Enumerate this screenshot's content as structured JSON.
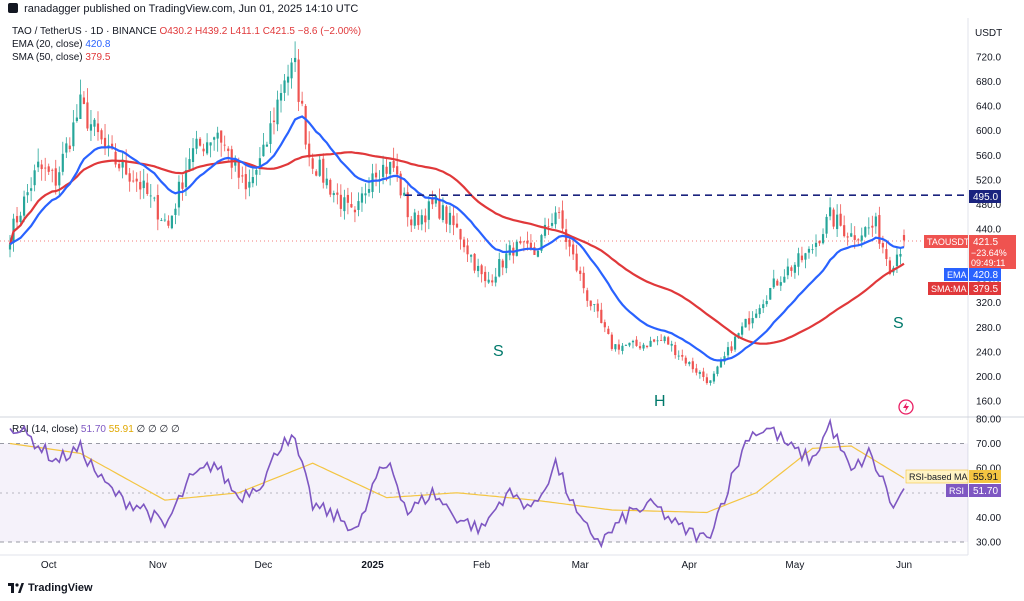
{
  "header": {
    "publisher": "ranadagger published on TradingView.com, Jun 01, 2025 14:10 UTC"
  },
  "legend": {
    "symbol": "TAO / TetherUS · 1D · BINANCE",
    "open": "O430.2",
    "high": "H439.2",
    "low": "L411.1",
    "close": "C421.5",
    "change": "−8.6 (−2.00%)",
    "ema_label": "EMA (20, close)",
    "ema_value": "420.8",
    "sma_label": "SMA (50, close)",
    "sma_value": "379.5",
    "rsi_label": "RSI (14, close)",
    "rsi_value": "51.70",
    "rsi_ma_value": "55.91",
    "rsi_extra": "∅ ∅ ∅ ∅"
  },
  "badges": {
    "usdt": "USDT",
    "level": "495.0",
    "ticker": "TAOUSDT",
    "price": "421.5",
    "pct": "−23.64%",
    "timer": "09:49:11",
    "ema": "EMA",
    "ema_val": "420.8",
    "sma": "SMA:MA",
    "sma_val": "379.5",
    "rsi_ma": "RSI-based MA",
    "rsi_ma_val": "55.91",
    "rsi": "RSI",
    "rsi_val": "51.70"
  },
  "annotations": {
    "s_left": "S",
    "h": "H",
    "s_right": "S"
  },
  "footer": {
    "brand": "TradingView"
  },
  "colors": {
    "up": "#26a69a",
    "down": "#ef5350",
    "ema": "#2962ff",
    "sma": "#e0383a",
    "rsi": "#7e57c2",
    "rsi_ma": "#f4c542",
    "level": "#1a237e"
  },
  "chart_data": [
    {
      "type": "candlestick",
      "symbol": "TAO / TetherUS",
      "timeframe": "1D",
      "exchange": "BINANCE",
      "y_scale": "linear",
      "ylim": [
        140,
        760
      ],
      "yticks": [
        160,
        200,
        240,
        280,
        320,
        360,
        400,
        440,
        480,
        520,
        560,
        600,
        640,
        680,
        720
      ],
      "xticks": [
        "Oct",
        "Nov",
        "Dec",
        "2025",
        "Feb",
        "Mar",
        "Apr",
        "May",
        "Jun"
      ],
      "date_range": [
        "2024-09-20",
        "2025-06-01"
      ],
      "anchors": [
        {
          "date": "2024-09-20",
          "close": 430
        },
        {
          "date": "2024-09-28",
          "close": 540
        },
        {
          "date": "2024-10-03",
          "close": 520
        },
        {
          "date": "2024-10-10",
          "close": 640
        },
        {
          "date": "2024-10-18",
          "close": 560
        },
        {
          "date": "2024-10-26",
          "close": 520
        },
        {
          "date": "2024-11-04",
          "close": 445
        },
        {
          "date": "2024-11-10",
          "close": 560
        },
        {
          "date": "2024-11-18",
          "close": 600
        },
        {
          "date": "2024-11-26",
          "close": 500
        },
        {
          "date": "2024-12-01",
          "close": 560
        },
        {
          "date": "2024-12-07",
          "close": 690
        },
        {
          "date": "2024-12-10",
          "close": 700
        },
        {
          "date": "2024-12-14",
          "close": 560
        },
        {
          "date": "2024-12-21",
          "close": 500
        },
        {
          "date": "2024-12-27",
          "close": 455
        },
        {
          "date": "2025-01-01",
          "close": 540
        },
        {
          "date": "2025-01-07",
          "close": 540
        },
        {
          "date": "2025-01-12",
          "close": 450
        },
        {
          "date": "2025-01-19",
          "close": 480
        },
        {
          "date": "2025-01-26",
          "close": 430
        },
        {
          "date": "2025-02-02",
          "close": 350
        },
        {
          "date": "2025-02-10",
          "close": 410
        },
        {
          "date": "2025-02-16",
          "close": 400
        },
        {
          "date": "2025-02-22",
          "close": 470
        },
        {
          "date": "2025-03-03",
          "close": 330
        },
        {
          "date": "2025-03-10",
          "close": 250
        },
        {
          "date": "2025-03-17",
          "close": 250
        },
        {
          "date": "2025-03-25",
          "close": 260
        },
        {
          "date": "2025-04-01",
          "close": 220
        },
        {
          "date": "2025-04-07",
          "close": 190
        },
        {
          "date": "2025-04-14",
          "close": 260
        },
        {
          "date": "2025-04-21",
          "close": 320
        },
        {
          "date": "2025-04-28",
          "close": 370
        },
        {
          "date": "2025-05-05",
          "close": 400
        },
        {
          "date": "2025-05-11",
          "close": 460
        },
        {
          "date": "2025-05-17",
          "close": 430
        },
        {
          "date": "2025-05-24",
          "close": 445
        },
        {
          "date": "2025-05-28",
          "close": 380
        },
        {
          "date": "2025-06-01",
          "close": 421.5
        }
      ],
      "last_candle": {
        "open": 430.2,
        "high": 439.2,
        "low": 411.1,
        "close": 421.5
      },
      "resistance_level": 495.0,
      "ema20_last": 420.8,
      "sma50_last": 379.5,
      "annotations": [
        "S",
        "H",
        "S"
      ]
    },
    {
      "type": "line",
      "name": "RSI (14, close)",
      "ylim": [
        25,
        82
      ],
      "yticks": [
        30,
        40,
        50,
        60,
        70,
        80
      ],
      "band": [
        30,
        70
      ],
      "rsi_last": 51.7,
      "rsi_ma_last": 55.91,
      "anchors": [
        {
          "date": "2024-09-20",
          "rsi": 78
        },
        {
          "date": "2024-09-26",
          "rsi": 72
        },
        {
          "date": "2024-10-03",
          "rsi": 63
        },
        {
          "date": "2024-10-10",
          "rsi": 68
        },
        {
          "date": "2024-10-16",
          "rsi": 55
        },
        {
          "date": "2024-10-22",
          "rsi": 47
        },
        {
          "date": "2024-10-28",
          "rsi": 44
        },
        {
          "date": "2024-11-03",
          "rsi": 36
        },
        {
          "date": "2024-11-10",
          "rsi": 55
        },
        {
          "date": "2024-11-17",
          "rsi": 62
        },
        {
          "date": "2024-11-24",
          "rsi": 48
        },
        {
          "date": "2024-12-01",
          "rsi": 55
        },
        {
          "date": "2024-12-07",
          "rsi": 73
        },
        {
          "date": "2024-12-10",
          "rsi": 70
        },
        {
          "date": "2024-12-15",
          "rsi": 45
        },
        {
          "date": "2024-12-22",
          "rsi": 40
        },
        {
          "date": "2024-12-28",
          "rsi": 35
        },
        {
          "date": "2025-01-02",
          "rsi": 56
        },
        {
          "date": "2025-01-06",
          "rsi": 62
        },
        {
          "date": "2025-01-11",
          "rsi": 42
        },
        {
          "date": "2025-01-18",
          "rsi": 50
        },
        {
          "date": "2025-01-25",
          "rsi": 40
        },
        {
          "date": "2025-02-01",
          "rsi": 35
        },
        {
          "date": "2025-02-08",
          "rsi": 50
        },
        {
          "date": "2025-02-16",
          "rsi": 44
        },
        {
          "date": "2025-02-22",
          "rsi": 62
        },
        {
          "date": "2025-03-01",
          "rsi": 38
        },
        {
          "date": "2025-03-07",
          "rsi": 30
        },
        {
          "date": "2025-03-15",
          "rsi": 42
        },
        {
          "date": "2025-03-22",
          "rsi": 45
        },
        {
          "date": "2025-03-29",
          "rsi": 36
        },
        {
          "date": "2025-04-06",
          "rsi": 31
        },
        {
          "date": "2025-04-12",
          "rsi": 52
        },
        {
          "date": "2025-04-18",
          "rsi": 74
        },
        {
          "date": "2025-04-24",
          "rsi": 76
        },
        {
          "date": "2025-04-30",
          "rsi": 68
        },
        {
          "date": "2025-05-06",
          "rsi": 63
        },
        {
          "date": "2025-05-11",
          "rsi": 78
        },
        {
          "date": "2025-05-17",
          "rsi": 58
        },
        {
          "date": "2025-05-22",
          "rsi": 66
        },
        {
          "date": "2025-05-27",
          "rsi": 52
        },
        {
          "date": "2025-05-29",
          "rsi": 43
        },
        {
          "date": "2025-06-01",
          "rsi": 51.7
        }
      ],
      "ma_anchors": [
        {
          "date": "2024-09-20",
          "v": 70
        },
        {
          "date": "2024-10-10",
          "v": 66
        },
        {
          "date": "2024-11-03",
          "v": 47
        },
        {
          "date": "2024-11-24",
          "v": 50
        },
        {
          "date": "2024-12-15",
          "v": 62
        },
        {
          "date": "2025-01-05",
          "v": 48
        },
        {
          "date": "2025-01-25",
          "v": 50
        },
        {
          "date": "2025-02-16",
          "v": 47
        },
        {
          "date": "2025-03-10",
          "v": 43
        },
        {
          "date": "2025-04-06",
          "v": 42
        },
        {
          "date": "2025-04-20",
          "v": 50
        },
        {
          "date": "2025-05-06",
          "v": 68
        },
        {
          "date": "2025-05-17",
          "v": 69
        },
        {
          "date": "2025-06-01",
          "v": 55.91
        }
      ]
    }
  ]
}
